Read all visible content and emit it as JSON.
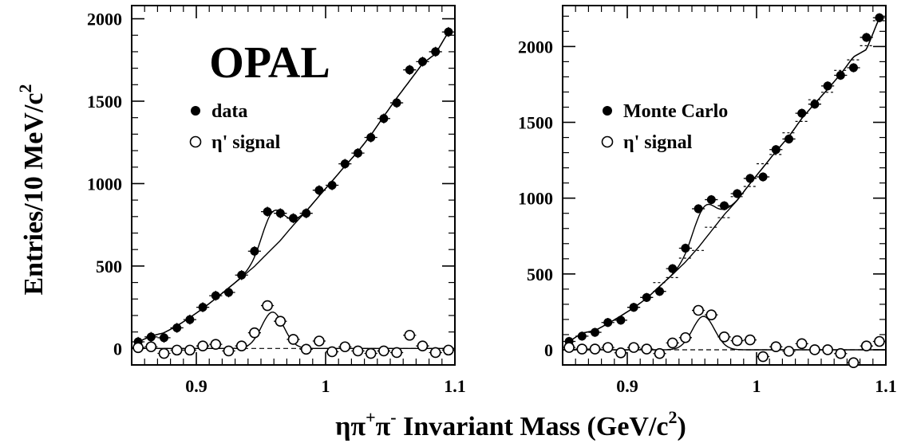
{
  "figure": {
    "ylabel_text": "Entries/10 MeV/c",
    "ylabel_sup": "2",
    "xlabel_parts": [
      "ηπ",
      "+",
      "π",
      "-",
      " Invariant Mass (GeV/c",
      "2",
      ")"
    ],
    "experiment_label": "OPAL"
  },
  "chart_data": [
    {
      "type": "scatter",
      "xlim": [
        0.85,
        1.1
      ],
      "ylim": [
        -100,
        2080
      ],
      "x_ticks": [
        0.9,
        1.0,
        1.1
      ],
      "x_tick_labels": [
        "0.9",
        "1",
        "1.1"
      ],
      "y_ticks": [
        0,
        500,
        1000,
        1500,
        2000
      ],
      "y_tick_labels": [
        "0",
        "500",
        "1000",
        "1500",
        "2000"
      ],
      "legend_position": "upper-left",
      "series": [
        {
          "name": "data",
          "marker": "filled-circle",
          "x": [
            0.855,
            0.865,
            0.875,
            0.885,
            0.895,
            0.905,
            0.915,
            0.925,
            0.935,
            0.945,
            0.955,
            0.965,
            0.975,
            0.985,
            0.995,
            1.005,
            1.015,
            1.025,
            1.035,
            1.045,
            1.055,
            1.065,
            1.075,
            1.085,
            1.095
          ],
          "y": [
            40,
            70,
            65,
            125,
            175,
            250,
            320,
            340,
            445,
            590,
            830,
            820,
            790,
            820,
            960,
            990,
            1120,
            1185,
            1280,
            1395,
            1490,
            1690,
            1740,
            1800,
            1920
          ]
        },
        {
          "name": "η' signal",
          "marker": "open-circle",
          "x": [
            0.855,
            0.865,
            0.875,
            0.885,
            0.895,
            0.905,
            0.915,
            0.925,
            0.935,
            0.945,
            0.955,
            0.965,
            0.975,
            0.985,
            0.995,
            1.005,
            1.015,
            1.025,
            1.035,
            1.045,
            1.055,
            1.065,
            1.075,
            1.085,
            1.095
          ],
          "y": [
            5,
            10,
            -30,
            -10,
            -10,
            15,
            25,
            -15,
            15,
            95,
            260,
            165,
            55,
            -5,
            45,
            -20,
            10,
            -15,
            -30,
            -15,
            -25,
            80,
            15,
            -25,
            -10
          ]
        }
      ]
    },
    {
      "type": "scatter",
      "xlim": [
        0.85,
        1.1
      ],
      "ylim": [
        -100,
        2270
      ],
      "x_ticks": [
        0.9,
        1.0,
        1.1
      ],
      "x_tick_labels": [
        "0.9",
        "1",
        "1.1"
      ],
      "y_ticks": [
        0,
        500,
        1000,
        1500,
        2000
      ],
      "y_tick_labels": [
        "0",
        "500",
        "1000",
        "1500",
        "2000"
      ],
      "legend_position": "upper-left",
      "series": [
        {
          "name": "Monte Carlo",
          "marker": "filled-circle",
          "x": [
            0.855,
            0.865,
            0.875,
            0.885,
            0.895,
            0.905,
            0.915,
            0.925,
            0.935,
            0.945,
            0.955,
            0.965,
            0.975,
            0.985,
            0.995,
            1.005,
            1.015,
            1.025,
            1.035,
            1.045,
            1.055,
            1.065,
            1.075,
            1.085,
            1.095
          ],
          "y": [
            55,
            90,
            115,
            180,
            195,
            280,
            345,
            385,
            535,
            670,
            930,
            990,
            950,
            1030,
            1130,
            1140,
            1320,
            1390,
            1560,
            1620,
            1740,
            1810,
            1860,
            2060,
            2190
          ]
        },
        {
          "name": "η' signal",
          "marker": "open-circle",
          "x": [
            0.855,
            0.865,
            0.875,
            0.885,
            0.895,
            0.905,
            0.915,
            0.925,
            0.935,
            0.945,
            0.955,
            0.965,
            0.975,
            0.985,
            0.995,
            1.005,
            1.015,
            1.025,
            1.035,
            1.045,
            1.055,
            1.065,
            1.075,
            1.085,
            1.095
          ],
          "y": [
            15,
            5,
            5,
            15,
            -20,
            15,
            5,
            -25,
            45,
            80,
            260,
            230,
            85,
            60,
            65,
            -45,
            20,
            -10,
            40,
            0,
            0,
            -25,
            -85,
            25,
            55
          ]
        }
      ]
    }
  ]
}
